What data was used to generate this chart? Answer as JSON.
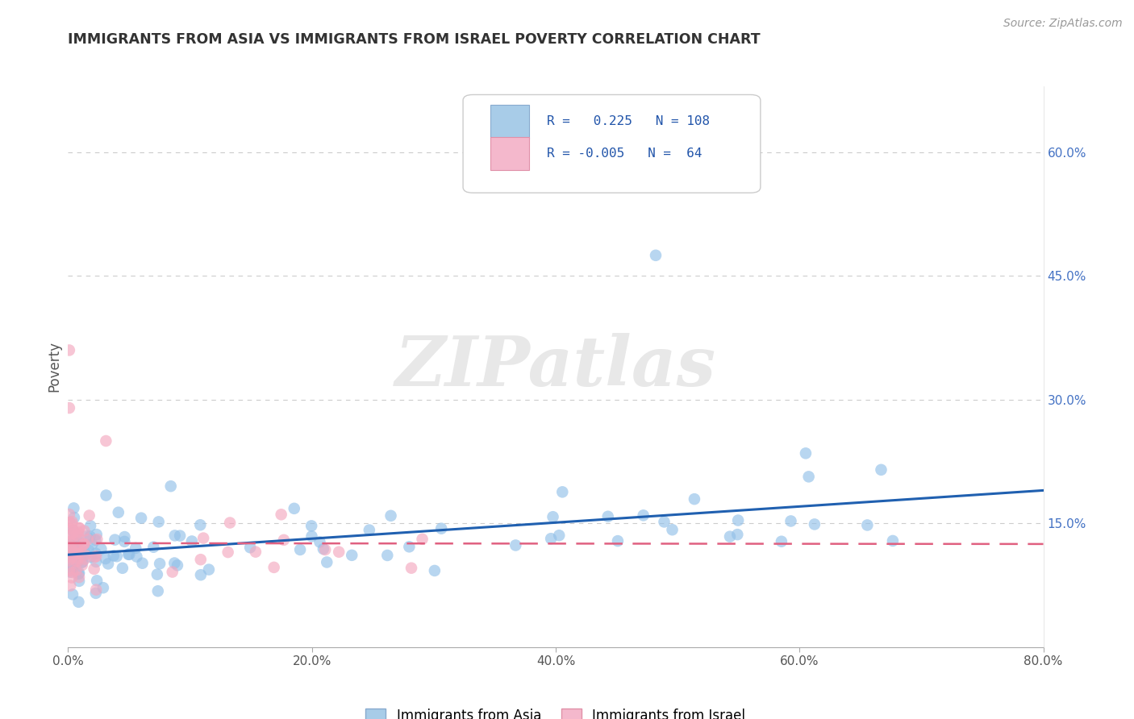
{
  "title": "IMMIGRANTS FROM ASIA VS IMMIGRANTS FROM ISRAEL POVERTY CORRELATION CHART",
  "source": "Source: ZipAtlas.com",
  "ylabel": "Poverty",
  "watermark": "ZIPatlas",
  "xlim": [
    0.0,
    0.8
  ],
  "ylim": [
    0.0,
    0.68
  ],
  "xticks": [
    0.0,
    0.2,
    0.4,
    0.6,
    0.8
  ],
  "xticklabels": [
    "0.0%",
    "20.0%",
    "40.0%",
    "60.0%",
    "80.0%"
  ],
  "yticks_right": [
    0.15,
    0.3,
    0.45,
    0.6
  ],
  "yticklabels_right": [
    "15.0%",
    "30.0%",
    "45.0%",
    "60.0%"
  ],
  "legend_asia_r": "0.225",
  "legend_asia_n": "108",
  "legend_israel_r": "-0.005",
  "legend_israel_n": "64",
  "asia_color": "#92C0E8",
  "israel_color": "#F4A8BF",
  "asia_line_color": "#2060B0",
  "israel_line_color": "#E06080",
  "grid_color": "#CCCCCC",
  "background_color": "#FFFFFF",
  "asia_trend_x": [
    0.0,
    0.8
  ],
  "asia_trend_y": [
    0.112,
    0.19
  ],
  "israel_trend_x": [
    0.0,
    0.8
  ],
  "israel_trend_y": [
    0.126,
    0.125
  ]
}
